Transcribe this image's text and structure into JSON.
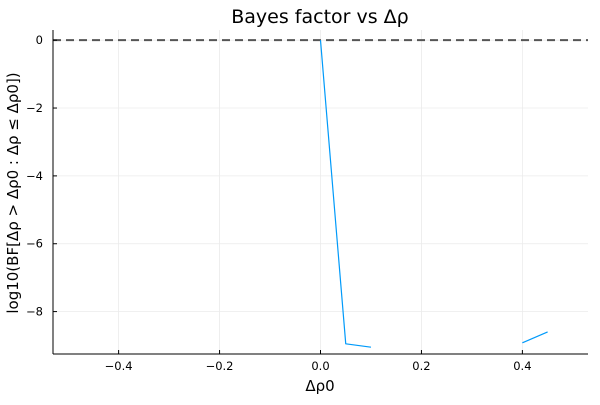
{
  "chart_data": {
    "type": "line",
    "title": "Bayes factor vs Δρ",
    "xlabel": "Δρ0",
    "ylabel": "log10(BF[Δρ > Δρ0 : Δρ ≤ Δρ0])",
    "xlim": [
      -0.53,
      0.53
    ],
    "ylim": [
      -9.25,
      0.3
    ],
    "x_ticks": [
      -0.4,
      -0.2,
      0.0,
      0.2,
      0.4
    ],
    "x_tick_labels": [
      "−0.4",
      "−0.2",
      "0.0",
      "0.2",
      "0.4"
    ],
    "y_ticks": [
      0,
      -2,
      -4,
      -6,
      -8
    ],
    "y_tick_labels": [
      "0",
      "−2",
      "−4",
      "−6",
      "−8"
    ],
    "grid": true,
    "legend": "none",
    "series": [
      {
        "color": "#009AFA",
        "segments": [
          [
            [
              0.0,
              0.0
            ],
            [
              0.05,
              -8.95
            ],
            [
              0.1,
              -9.05
            ]
          ],
          [
            [
              0.4,
              -8.92
            ],
            [
              0.45,
              -8.6
            ]
          ]
        ]
      }
    ],
    "reference_lines": [
      {
        "orientation": "horizontal",
        "y": 0,
        "style": "dashed",
        "color": "#555555"
      }
    ]
  }
}
